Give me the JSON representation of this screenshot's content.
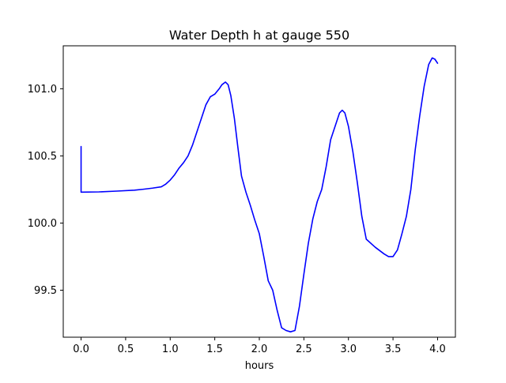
{
  "chart_data": {
    "type": "line",
    "title": "Water Depth h at gauge 550",
    "xlabel": "hours",
    "ylabel": "",
    "xlim": [
      -0.2,
      4.2
    ],
    "ylim": [
      99.15,
      101.32
    ],
    "x_ticks": [
      0.0,
      0.5,
      1.0,
      1.5,
      2.0,
      2.5,
      3.0,
      3.5,
      4.0
    ],
    "x_tick_labels": [
      "0.0",
      "0.5",
      "1.0",
      "1.5",
      "2.0",
      "2.5",
      "3.0",
      "3.5",
      "4.0"
    ],
    "y_ticks": [
      99.5,
      100.0,
      100.5,
      101.0
    ],
    "y_tick_labels": [
      "99.5",
      "100.0",
      "100.5",
      "101.0"
    ],
    "grid": false,
    "series": [
      {
        "color": "#0000ff",
        "x": [
          0.0,
          0.0,
          0.01,
          0.2,
          0.4,
          0.6,
          0.7,
          0.8,
          0.9,
          0.95,
          1.0,
          1.05,
          1.1,
          1.15,
          1.2,
          1.25,
          1.3,
          1.35,
          1.4,
          1.45,
          1.5,
          1.55,
          1.58,
          1.62,
          1.65,
          1.68,
          1.72,
          1.76,
          1.8,
          1.85,
          1.9,
          1.95,
          2.0,
          2.05,
          2.1,
          2.15,
          2.2,
          2.25,
          2.3,
          2.35,
          2.4,
          2.45,
          2.5,
          2.55,
          2.6,
          2.65,
          2.7,
          2.75,
          2.8,
          2.85,
          2.9,
          2.93,
          2.96,
          3.0,
          3.05,
          3.1,
          3.15,
          3.2,
          3.3,
          3.4,
          3.45,
          3.5,
          3.55,
          3.6,
          3.65,
          3.7,
          3.75,
          3.8,
          3.85,
          3.9,
          3.94,
          3.97,
          4.0
        ],
        "y": [
          100.57,
          100.23,
          100.23,
          100.232,
          100.238,
          100.245,
          100.252,
          100.26,
          100.27,
          100.29,
          100.32,
          100.36,
          100.41,
          100.45,
          100.5,
          100.58,
          100.68,
          100.78,
          100.88,
          100.94,
          100.96,
          101.0,
          101.03,
          101.05,
          101.03,
          100.95,
          100.78,
          100.56,
          100.35,
          100.23,
          100.13,
          100.02,
          99.92,
          99.75,
          99.57,
          99.5,
          99.35,
          99.22,
          99.2,
          99.19,
          99.2,
          99.38,
          99.62,
          99.85,
          100.03,
          100.16,
          100.25,
          100.42,
          100.62,
          100.72,
          100.82,
          100.84,
          100.82,
          100.72,
          100.53,
          100.3,
          100.05,
          99.88,
          99.82,
          99.77,
          99.75,
          99.75,
          99.8,
          99.92,
          100.05,
          100.25,
          100.55,
          100.8,
          101.02,
          101.18,
          101.23,
          101.22,
          101.19
        ]
      }
    ]
  }
}
